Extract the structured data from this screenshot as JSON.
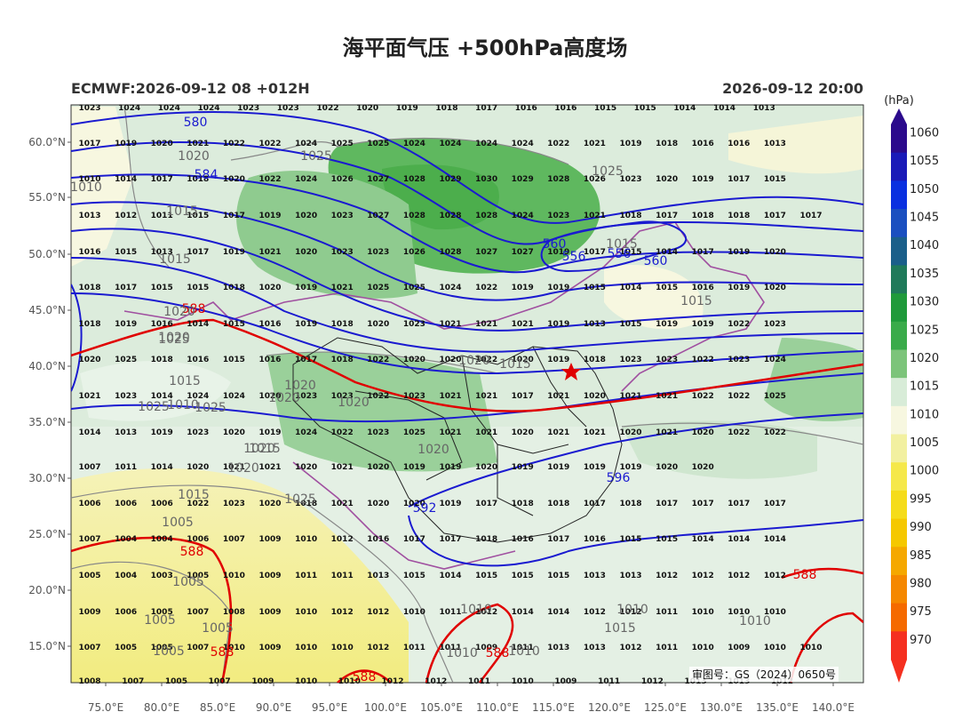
{
  "title": "海平面气压 +500hPa高度场",
  "model_info": "ECMWF:2026-09-12 08 +012H",
  "valid_time": "2026-09-12 20:00",
  "credit": "审图号：GS（2024）0650号",
  "colorbar": {
    "unit": "(hPa)",
    "levels": [
      "1060",
      "1055",
      "1050",
      "1045",
      "1040",
      "1035",
      "1030",
      "1025",
      "1020",
      "1015",
      "1010",
      "1005",
      "1000",
      "995",
      "990",
      "985",
      "980",
      "975",
      "970"
    ],
    "colors": [
      "#2b0a8c",
      "#1a1ab8",
      "#0a30e0",
      "#1a4fc0",
      "#1a5f8a",
      "#1f7a5a",
      "#1f9a3a",
      "#3aab4a",
      "#7cc47a",
      "#d8ecd8",
      "#f7f7e0",
      "#f2f0a0",
      "#f5e84a",
      "#f5dc1a",
      "#f5c800",
      "#f5a800",
      "#f58800",
      "#f56a00",
      "#f53020"
    ]
  },
  "map": {
    "lat_labels": [
      "60.0°N",
      "55.0°N",
      "50.0°N",
      "45.0°N",
      "40.0°N",
      "35.0°N",
      "30.0°N",
      "25.0°N",
      "20.0°N",
      "15.0°N"
    ],
    "lon_labels": [
      "75.0°E",
      "80.0°E",
      "85.0°E",
      "90.0°E",
      "95.0°E",
      "100.0°E",
      "105.0°E",
      "110.0°E",
      "115.0°E",
      "120.0°E",
      "125.0°E",
      "130.0°E",
      "135.0°E",
      "140.0°E"
    ],
    "pressure_rows": [
      [
        "1017",
        "1019",
        "1020",
        "1021",
        "1022",
        "1022",
        "1024",
        "1025",
        "1025",
        "1024",
        "1024",
        "1024",
        "1024",
        "1022",
        "1021",
        "1019",
        "1018",
        "1016",
        "1016",
        "1013"
      ],
      [
        "1010",
        "1014",
        "1017",
        "1018",
        "1020",
        "1022",
        "1024",
        "1026",
        "1027",
        "1028",
        "1029",
        "1030",
        "1029",
        "1028",
        "1026",
        "1023",
        "1020",
        "1019",
        "1017",
        "1015"
      ],
      [
        "1013",
        "1012",
        "1011",
        "1015",
        "1017",
        "1019",
        "1020",
        "1023",
        "1027",
        "1028",
        "1028",
        "1028",
        "1024",
        "1023",
        "1021",
        "1018",
        "1017",
        "1018",
        "1018",
        "1017",
        "1017"
      ],
      [
        "1016",
        "1015",
        "1013",
        "1017",
        "1019",
        "1021",
        "1020",
        "1023",
        "1023",
        "1026",
        "1028",
        "1027",
        "1027",
        "1019",
        "1017",
        "1015",
        "1014",
        "1017",
        "1019",
        "1020"
      ],
      [
        "1018",
        "1017",
        "1015",
        "1015",
        "1018",
        "1020",
        "1019",
        "1021",
        "1025",
        "1025",
        "1024",
        "1022",
        "1019",
        "1019",
        "1015",
        "1014",
        "1015",
        "1016",
        "1019",
        "1020"
      ],
      [
        "1018",
        "1019",
        "1016",
        "1014",
        "1015",
        "1016",
        "1019",
        "1018",
        "1020",
        "1023",
        "1021",
        "1021",
        "1021",
        "1019",
        "1013",
        "1015",
        "1019",
        "1019",
        "1022",
        "1023"
      ],
      [
        "1020",
        "1025",
        "1018",
        "1016",
        "1015",
        "1016",
        "1017",
        "1018",
        "1022",
        "1020",
        "1020",
        "1022",
        "1020",
        "1019",
        "1018",
        "1023",
        "1023",
        "1022",
        "1023",
        "1024"
      ],
      [
        "1021",
        "1023",
        "1014",
        "1024",
        "1024",
        "1020",
        "1023",
        "1023",
        "1022",
        "1023",
        "1021",
        "1021",
        "1017",
        "1021",
        "1020",
        "1021",
        "1021",
        "1022",
        "1022",
        "1025"
      ],
      [
        "1014",
        "1013",
        "1019",
        "1023",
        "1020",
        "1019",
        "1024",
        "1022",
        "1023",
        "1025",
        "1021",
        "1021",
        "1020",
        "1021",
        "1021",
        "1020",
        "1021",
        "1020",
        "1022",
        "1022"
      ],
      [
        "1007",
        "1011",
        "1014",
        "1020",
        "1021",
        "1021",
        "1020",
        "1021",
        "1020",
        "1019",
        "1019",
        "1020",
        "1019",
        "1019",
        "1019",
        "1019",
        "1020",
        "1020"
      ],
      [
        "1006",
        "1006",
        "1006",
        "1022",
        "1023",
        "1020",
        "1018",
        "1021",
        "1020",
        "1020",
        "1019",
        "1017",
        "1018",
        "1018",
        "1017",
        "1018",
        "1017",
        "1017",
        "1017",
        "1017"
      ],
      [
        "1007",
        "1004",
        "1004",
        "1006",
        "1007",
        "1009",
        "1010",
        "1012",
        "1016",
        "1017",
        "1017",
        "1018",
        "1016",
        "1017",
        "1016",
        "1015",
        "1015",
        "1014",
        "1014",
        "1014"
      ],
      [
        "1005",
        "1004",
        "1003",
        "1005",
        "1010",
        "1009",
        "1011",
        "1011",
        "1013",
        "1015",
        "1014",
        "1015",
        "1015",
        "1015",
        "1013",
        "1013",
        "1012",
        "1012",
        "1012",
        "1012"
      ],
      [
        "1009",
        "1006",
        "1005",
        "1007",
        "1008",
        "1009",
        "1010",
        "1012",
        "1012",
        "1010",
        "1011",
        "1012",
        "1014",
        "1014",
        "1012",
        "1012",
        "1011",
        "1010",
        "1010",
        "1010"
      ],
      [
        "1007",
        "1005",
        "1005",
        "1007",
        "1010",
        "1009",
        "1010",
        "1010",
        "1012",
        "1011",
        "1011",
        "1009",
        "1011",
        "1013",
        "1013",
        "1012",
        "1011",
        "1010",
        "1009",
        "1010",
        "1010"
      ]
    ],
    "top_row": [
      "1023",
      "1024",
      "1024",
      "1024",
      "1023",
      "1023",
      "1022",
      "1020",
      "1019",
      "1018",
      "1017",
      "1016",
      "1016",
      "1015",
      "1015",
      "1014",
      "1014",
      "1013"
    ],
    "bottom_row": [
      "1008",
      "1007",
      "1005",
      "1007",
      "1009",
      "1010",
      "1010",
      "1012",
      "1012",
      "1011",
      "1010",
      "1009",
      "1011",
      "1012",
      "1013",
      "1013",
      "1012"
    ],
    "height_labels": [
      "580",
      "584",
      "560",
      "556",
      "556",
      "560",
      "592",
      "596",
      "588",
      "588",
      "588",
      "588",
      "588",
      "588"
    ],
    "slp_labels": [
      "1020",
      "1025",
      "1010",
      "1015",
      "1015",
      "1015",
      "1025",
      "1020",
      "1020",
      "1025",
      "1015",
      "1010",
      "1015",
      "1025",
      "1020",
      "1020",
      "1025",
      "1020",
      "1020",
      "1020",
      "1015",
      "1020",
      "1025",
      "1015",
      "1020",
      "1015",
      "1010",
      "1005",
      "1005",
      "1005",
      "1005",
      "1010",
      "1010",
      "1005",
      "1015",
      "1010",
      "1010"
    ]
  }
}
